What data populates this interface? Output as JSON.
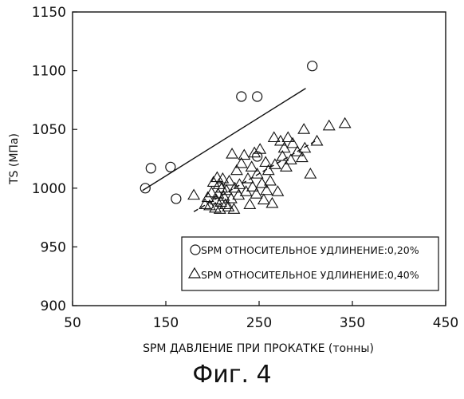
{
  "chart_data": {
    "type": "scatter",
    "xlabel": "SPM ДАВЛЕНИЕ ПРИ ПРОКАТКЕ (тонны)",
    "ylabel": "TS (МПа)",
    "xlim": [
      50,
      450
    ],
    "ylim": [
      900,
      1150
    ],
    "xticks": [
      "50",
      "150",
      "250",
      "350",
      "450"
    ],
    "yticks": [
      "900",
      "950",
      "1000",
      "1050",
      "1100",
      "1150"
    ],
    "legend_position": "bottom-right",
    "grid": false,
    "series": [
      {
        "name": "SPM ОТНОСИТЕЛЬНОЕ УДЛИНЕНИЕ:0,20%",
        "marker": "circle",
        "fit": "solid",
        "fit_line": [
          [
            125,
            998
          ],
          [
            300,
            1085
          ]
        ],
        "points": [
          [
            128,
            1000
          ],
          [
            134,
            1017
          ],
          [
            155,
            1018
          ],
          [
            161,
            991
          ],
          [
            231,
            1078
          ],
          [
            248,
            1078
          ],
          [
            248,
            1027
          ],
          [
            307,
            1104
          ]
        ]
      },
      {
        "name": "SPM ОТНОСИТЕЛЬНОЕ УДЛИНЕНИЕ:0,40%",
        "marker": "triangle",
        "fit": "dashed",
        "fit_line": [
          [
            180,
            980
          ],
          [
            310,
            1040
          ]
        ],
        "points": [
          [
            180,
            994
          ],
          [
            192,
            986
          ],
          [
            195,
            992
          ],
          [
            197,
            985
          ],
          [
            199,
            996
          ],
          [
            201,
            1005
          ],
          [
            203,
            983
          ],
          [
            204,
            990
          ],
          [
            205,
            1009
          ],
          [
            206,
            995
          ],
          [
            207,
            1003
          ],
          [
            208,
            982
          ],
          [
            209,
            988
          ],
          [
            210,
            1000
          ],
          [
            211,
            1008
          ],
          [
            212,
            993
          ],
          [
            214,
            986
          ],
          [
            215,
            998
          ],
          [
            217,
            984
          ],
          [
            218,
            1006
          ],
          [
            220,
            991
          ],
          [
            221,
            1029
          ],
          [
            223,
            982
          ],
          [
            224,
            1000
          ],
          [
            226,
            1015
          ],
          [
            228,
            994
          ],
          [
            229,
            1003
          ],
          [
            231,
            1021
          ],
          [
            234,
            1028
          ],
          [
            236,
            997
          ],
          [
            238,
            1008
          ],
          [
            240,
            986
          ],
          [
            242,
            1018
          ],
          [
            243,
            1001
          ],
          [
            245,
            1030
          ],
          [
            247,
            995
          ],
          [
            248,
            1012
          ],
          [
            251,
            1033
          ],
          [
            253,
            1004
          ],
          [
            255,
            990
          ],
          [
            257,
            1022
          ],
          [
            258,
            998
          ],
          [
            260,
            1015
          ],
          [
            262,
            1006
          ],
          [
            264,
            987
          ],
          [
            266,
            1043
          ],
          [
            267,
            1020
          ],
          [
            270,
            997
          ],
          [
            273,
            1040
          ],
          [
            275,
            1027
          ],
          [
            277,
            1034
          ],
          [
            279,
            1018
          ],
          [
            281,
            1043
          ],
          [
            284,
            1024
          ],
          [
            286,
            1038
          ],
          [
            291,
            1031
          ],
          [
            296,
            1026
          ],
          [
            298,
            1050
          ],
          [
            299,
            1034
          ],
          [
            305,
            1012
          ],
          [
            312,
            1040
          ],
          [
            325,
            1053
          ],
          [
            342,
            1055
          ]
        ]
      }
    ]
  },
  "figure_caption": "Фиг. 4"
}
